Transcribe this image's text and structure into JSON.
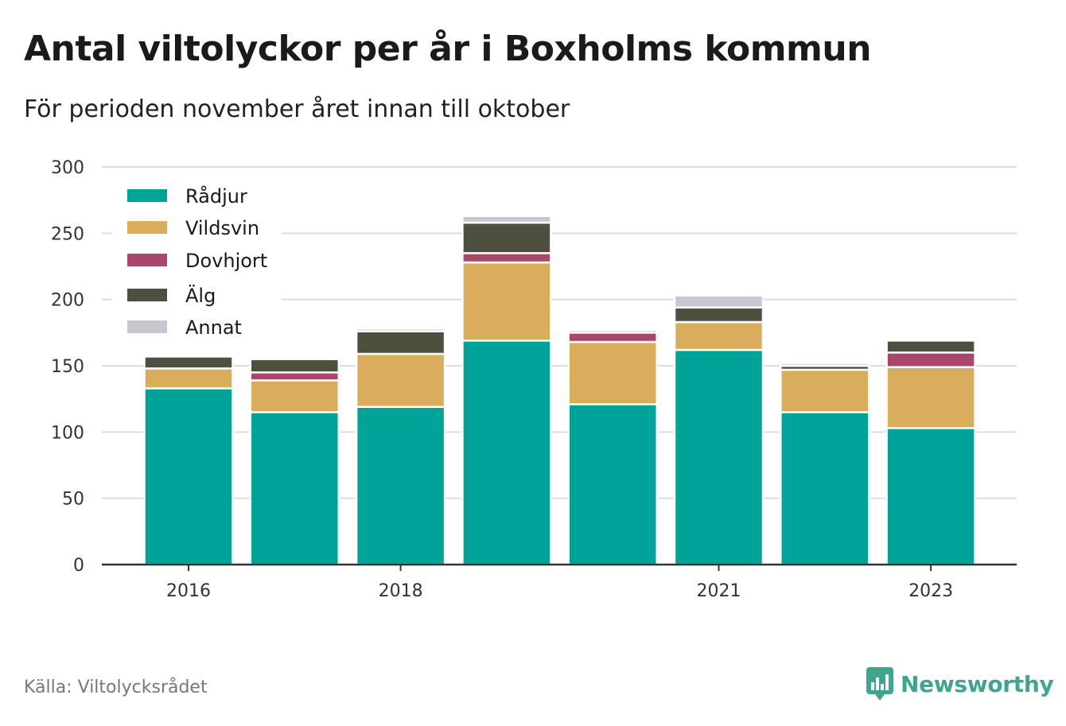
{
  "title": "Antal viltolyckor per år i Boxholms kommun",
  "subtitle": "För perioden november året innan till oktober",
  "source": "Källa: Viltolycksrådet",
  "brand": "Newsworthy",
  "colors": {
    "radjur": "#00a398",
    "vildsvin": "#d9ad5b",
    "dovhjort": "#a8476b",
    "alg": "#4f4f3f",
    "annat": "#c8c7d1",
    "brand": "#3fa58e"
  },
  "chart_data": {
    "type": "bar",
    "stacked": true,
    "categories": [
      "2016",
      "2017",
      "2018",
      "2019",
      "2020",
      "2021",
      "2022",
      "2023"
    ],
    "x_tick_labels": [
      "2016",
      "2018",
      "2021",
      "2023"
    ],
    "ylim": [
      0,
      300
    ],
    "y_ticks": [
      0,
      50,
      100,
      150,
      200,
      250,
      300
    ],
    "grid": true,
    "legend_position": "top-left",
    "series": [
      {
        "name": "Rådjur",
        "key": "radjur",
        "values": [
          133,
          115,
          119,
          169,
          121,
          162,
          115,
          103
        ]
      },
      {
        "name": "Vildsvin",
        "key": "vildsvin",
        "values": [
          15,
          24,
          40,
          59,
          47,
          21,
          32,
          46
        ]
      },
      {
        "name": "Dovhjort",
        "key": "dovhjort",
        "values": [
          0,
          6,
          0,
          7,
          7,
          0,
          0,
          11
        ]
      },
      {
        "name": "Älg",
        "key": "alg",
        "values": [
          9,
          10,
          17,
          23,
          0,
          11,
          3,
          9
        ]
      },
      {
        "name": "Annat",
        "key": "annat",
        "values": [
          1,
          0,
          2,
          5,
          2,
          9,
          2,
          0
        ]
      }
    ]
  }
}
